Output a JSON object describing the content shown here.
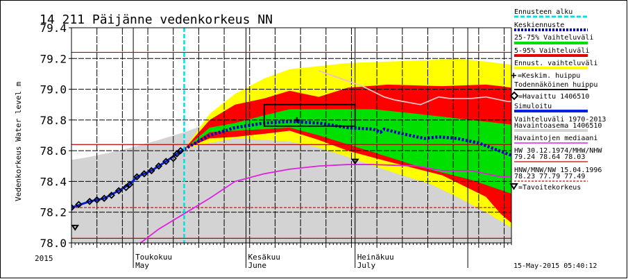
{
  "title": "14 211 Päijänne vedenkorkeus NN",
  "ylabel": "Vedenkorkeus Water level m",
  "year_label": "2015",
  "timestamp": "15-May-2015 05:40:12",
  "months": [
    {
      "fi": "Toukokuu",
      "en": "May",
      "date": "2015-05-01"
    },
    {
      "fi": "Kesäkuu",
      "en": "June",
      "date": "2015-06-01"
    },
    {
      "fi": "Heinäkuu",
      "en": "July",
      "date": "2015-07-01"
    },
    {
      "fi": "",
      "en": "",
      "date": "2015-08-01"
    }
  ],
  "legend": {
    "forecast_start": "Ennusteen alku",
    "median_forecast": "Keskiennuste",
    "p25_75": "25-75% Vaihteluväli",
    "p5_95": "5-95% Vaihteluväli",
    "forecast_range": "Ennust. vaihteluväli",
    "mean_peak": "=Keskim. huippu",
    "probable_peak": "Todennäköinen huippu",
    "observed": "=Havaittu 1406510",
    "simulated": "Simuloitu",
    "range_1": "Vaihteluväli 1970-2013",
    "range_2": "Havaintoasema 1406510",
    "obs_median": "Havaintojen mediaani",
    "hw_1": "HW 30.12.1974/MHW/NHW",
    "hw_2": "79.24 78.64 78.03",
    "hnw_1": "HNW/MNW/NW 15.04.1996",
    "hnw_2": "78.23 77.79 77.49",
    "target": "=Tavoitekorkeus"
  },
  "colors": {
    "forecast_start": "#00e0e0",
    "median_forecast": "#0000c0",
    "p25_75": "#00e000",
    "p5_95": "#ff0000",
    "forecast_range": "#ffff00",
    "simulated": "#0020e0",
    "range": "#d3d3d3",
    "obs_median": "#e020e0",
    "ref_line": "#c00000",
    "upper_obs": "#f4c0c0"
  },
  "chart_data": {
    "type": "line",
    "title": "14 211 Päijänne vedenkorkeus NN",
    "ylabel": "Vedenkorkeus Water level m",
    "xlim": [
      "2015-04-14",
      "2015-08-13"
    ],
    "ylim": [
      78.0,
      79.4
    ],
    "yticks": [
      "78.0",
      "78.2",
      "78.4",
      "78.6",
      "78.8",
      "79.0",
      "79.2",
      "79.4"
    ],
    "grid": true,
    "legend_placement": "right",
    "forecast_start": "2015-05-15",
    "reference_lines": [
      {
        "label": "HW",
        "value": 79.24,
        "style": "solid"
      },
      {
        "label": "MHW",
        "value": 78.64,
        "style": "solid"
      },
      {
        "label": "NHW",
        "value": 78.03,
        "style": "solid"
      },
      {
        "label": "HNW",
        "value": 78.23,
        "style": "dashed"
      }
    ],
    "bands": [
      {
        "name": "Vaihteluväli 1970-2013",
        "color": "#d3d3d3",
        "x": [
          "2015-04-14",
          "2015-04-19",
          "2015-04-23",
          "2015-04-27",
          "2015-05-02",
          "2015-05-08",
          "2015-05-15",
          "2015-05-22",
          "2015-05-29",
          "2015-06-06",
          "2015-06-13",
          "2015-06-20",
          "2015-06-21",
          "2015-07-03",
          "2015-07-10",
          "2015-07-18",
          "2015-07-24",
          "2015-08-02",
          "2015-08-13"
        ],
        "upper": [
          78.54,
          78.56,
          78.58,
          78.6,
          78.63,
          78.67,
          78.72,
          78.78,
          78.97,
          79.05,
          79.13,
          79.13,
          79.12,
          79.02,
          78.95,
          78.9,
          78.96,
          78.96,
          78.95
        ],
        "lower": [
          78.0,
          78.0,
          78.0,
          78.0,
          78.0,
          78.0,
          78.0,
          78.0,
          78.0,
          78.0,
          78.0,
          78.0,
          78.0,
          78.0,
          78.0,
          78.0,
          78.0,
          78.0,
          78.0
        ]
      },
      {
        "name": "Ennust. vaihteluväli",
        "color": "#ffff00",
        "x": [
          "2015-05-15",
          "2015-05-22",
          "2015-05-29",
          "2015-06-06",
          "2015-06-13",
          "2015-06-21",
          "2015-06-29",
          "2015-07-10",
          "2015-07-22",
          "2015-07-29",
          "2015-08-06",
          "2015-08-13"
        ],
        "upper": [
          78.61,
          78.84,
          78.97,
          79.07,
          79.13,
          79.15,
          79.17,
          79.18,
          79.19,
          79.2,
          79.18,
          79.16
        ],
        "lower": [
          78.61,
          78.65,
          78.68,
          78.67,
          78.66,
          78.62,
          78.56,
          78.47,
          78.38,
          78.3,
          78.2,
          78.1
        ]
      },
      {
        "name": "5-95% Vaihteluväli",
        "color": "#ff0000",
        "x": [
          "2015-05-15",
          "2015-05-22",
          "2015-05-29",
          "2015-06-06",
          "2015-06-13",
          "2015-06-21",
          "2015-06-29",
          "2015-07-10",
          "2015-07-25",
          "2015-08-06",
          "2015-08-10",
          "2015-08-13"
        ],
        "upper": [
          78.61,
          78.8,
          78.9,
          78.94,
          78.99,
          78.95,
          79.01,
          79.03,
          79.02,
          79.03,
          79.02,
          79.01
        ],
        "lower": [
          78.61,
          78.68,
          78.69,
          78.71,
          78.73,
          78.67,
          78.6,
          78.53,
          78.44,
          78.3,
          78.19,
          78.13
        ]
      },
      {
        "name": "25-75% Vaihteluväli",
        "color": "#00e000",
        "x": [
          "2015-05-15",
          "2015-05-22",
          "2015-05-29",
          "2015-06-06",
          "2015-06-13",
          "2015-06-21",
          "2015-07-06",
          "2015-07-18",
          "2015-08-02",
          "2015-08-13"
        ],
        "upper": [
          78.61,
          78.75,
          78.78,
          78.83,
          78.87,
          78.87,
          78.87,
          78.84,
          78.8,
          78.77
        ],
        "lower": [
          78.61,
          78.72,
          78.73,
          78.74,
          78.75,
          78.7,
          78.59,
          78.5,
          78.41,
          78.32
        ]
      }
    ],
    "series": [
      {
        "name": "Simuloitu",
        "color": "#0020e0",
        "style": "solid",
        "x": [
          "2015-04-14",
          "2015-04-19",
          "2015-04-23",
          "2015-04-27",
          "2015-04-30",
          "2015-05-02",
          "2015-05-06",
          "2015-05-10",
          "2015-05-13",
          "2015-05-15"
        ],
        "y": [
          78.23,
          78.27,
          78.29,
          78.34,
          78.38,
          78.43,
          78.47,
          78.53,
          78.58,
          78.61
        ]
      },
      {
        "name": "Keskiennuste",
        "color": "#0000c0",
        "style": "dotted",
        "x": [
          "2015-05-15",
          "2015-05-22",
          "2015-05-29",
          "2015-06-06",
          "2015-06-13",
          "2015-06-21",
          "2015-06-29",
          "2015-07-06",
          "2015-07-08",
          "2015-07-09",
          "2015-07-14",
          "2015-07-20",
          "2015-07-24",
          "2015-07-29",
          "2015-08-04",
          "2015-08-13"
        ],
        "y": [
          78.61,
          78.7,
          78.75,
          78.78,
          78.79,
          78.78,
          78.75,
          78.74,
          78.72,
          78.74,
          78.71,
          78.68,
          78.69,
          78.68,
          78.65,
          78.57
        ]
      },
      {
        "name": "Havaintojen mediaani",
        "color": "#e020e0",
        "style": "solid",
        "x": [
          "2015-05-03",
          "2015-05-08",
          "2015-05-15",
          "2015-05-22",
          "2015-05-29",
          "2015-06-06",
          "2015-06-13",
          "2015-06-21",
          "2015-06-29",
          "2015-07-06",
          "2015-07-18",
          "2015-07-25",
          "2015-08-02",
          "2015-08-10",
          "2015-08-13"
        ],
        "y": [
          78.0,
          78.09,
          78.19,
          78.29,
          78.4,
          78.45,
          78.48,
          78.5,
          78.51,
          78.51,
          78.5,
          78.47,
          78.47,
          78.43,
          78.43
        ]
      },
      {
        "name": "",
        "color": "#f4c0c0",
        "style": "solid",
        "x": [
          "2015-06-21",
          "2015-07-03",
          "2015-07-09",
          "2015-07-12",
          "2015-07-19",
          "2015-07-24",
          "2015-07-27",
          "2015-08-02",
          "2015-08-06",
          "2015-08-12",
          "2015-08-13"
        ],
        "y": [
          79.12,
          79.02,
          78.95,
          78.93,
          78.9,
          78.95,
          78.94,
          78.94,
          78.95,
          78.92,
          78.92
        ]
      }
    ],
    "observed": {
      "name": "Havaittu 1406510",
      "x": [
        "2015-04-14",
        "2015-04-16",
        "2015-04-19",
        "2015-04-21",
        "2015-04-23",
        "2015-04-25",
        "2015-04-27",
        "2015-04-29",
        "2015-04-30",
        "2015-05-02",
        "2015-05-04",
        "2015-05-06",
        "2015-05-08",
        "2015-05-10",
        "2015-05-12",
        "2015-05-13",
        "2015-05-14"
      ],
      "y": [
        78.23,
        78.25,
        78.27,
        78.28,
        78.29,
        78.31,
        78.34,
        78.36,
        78.38,
        78.43,
        78.45,
        78.47,
        78.5,
        78.53,
        78.55,
        78.58,
        78.6
      ]
    },
    "mean_peak": {
      "x": "2015-06-15",
      "y": 78.8
    },
    "probable_peak_box": {
      "x": [
        "2015-06-06",
        "2015-07-01"
      ],
      "y": [
        78.76,
        78.9
      ]
    },
    "target_levels": [
      {
        "x": "2015-04-15",
        "y": 78.1
      },
      {
        "x": "2015-07-01",
        "y": 78.53
      }
    ]
  }
}
